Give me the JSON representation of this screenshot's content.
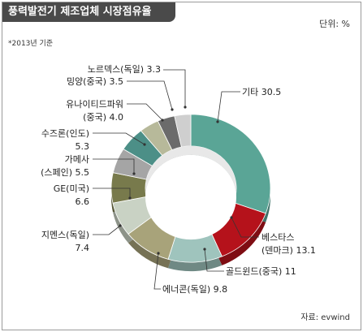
{
  "title": "풍력발전기 제조업체 시장점유율",
  "unit_label": "단위: %",
  "note": "*2013년 기준",
  "source": "자료: evwind",
  "chart_data": {
    "type": "donut",
    "title": "풍력발전기 제조업체 시장점유율",
    "unit": "%",
    "year": "2013",
    "slices": [
      {
        "name": "기타",
        "value": 30.5,
        "value_label": "30.5",
        "label_lines": [
          "기타 30.5"
        ],
        "color": "#5aa596"
      },
      {
        "name": "베스타스(덴마크)",
        "value": 13.1,
        "value_label": "13.1",
        "label_lines": [
          "베스타스",
          "(덴마크) 13.1"
        ],
        "color": "#b5121b"
      },
      {
        "name": "골드윈드(중국)",
        "value": 11,
        "value_label": "11",
        "label_lines": [
          "골드윈드(중국) 11"
        ],
        "color": "#9fc4bd"
      },
      {
        "name": "에너콘(독일)",
        "value": 9.8,
        "value_label": "9.8",
        "label_lines": [
          "에너콘(독일) 9.8"
        ],
        "color": "#a8a37a"
      },
      {
        "name": "지멘스(독일)",
        "value": 7.4,
        "value_label": "7.4",
        "label_lines": [
          "지멘스(독일)",
          "7.4"
        ],
        "color": "#c9d2c4"
      },
      {
        "name": "GE(미국)",
        "value": 6.6,
        "value_label": "6.6",
        "label_lines": [
          "GE(미국)",
          "6.6"
        ],
        "color": "#787a4c"
      },
      {
        "name": "가메사(스페인)",
        "value": 5.5,
        "value_label": "5.5",
        "label_lines": [
          "가메사",
          "(스페인) 5.5"
        ],
        "color": "#a5a5a5"
      },
      {
        "name": "수즈론(인도)",
        "value": 5.3,
        "value_label": "5.3",
        "label_lines": [
          "수즈론(인도)",
          "5.3"
        ],
        "color": "#4c8f87"
      },
      {
        "name": "유나이티드파워(중국)",
        "value": 4.0,
        "value_label": "4.0",
        "label_lines": [
          "유나이티드파워",
          "(중국) 4.0"
        ],
        "color": "#b7b99a"
      },
      {
        "name": "밍양(중국)",
        "value": 3.5,
        "value_label": "3.5",
        "label_lines": [
          "밍양(중국) 3.5"
        ],
        "color": "#6b6b6b"
      },
      {
        "name": "노르덱스(독일)",
        "value": 3.3,
        "value_label": "3.3",
        "label_lines": [
          "노르덱스(독일) 3.3"
        ],
        "color": "#cfcfcf"
      }
    ]
  }
}
